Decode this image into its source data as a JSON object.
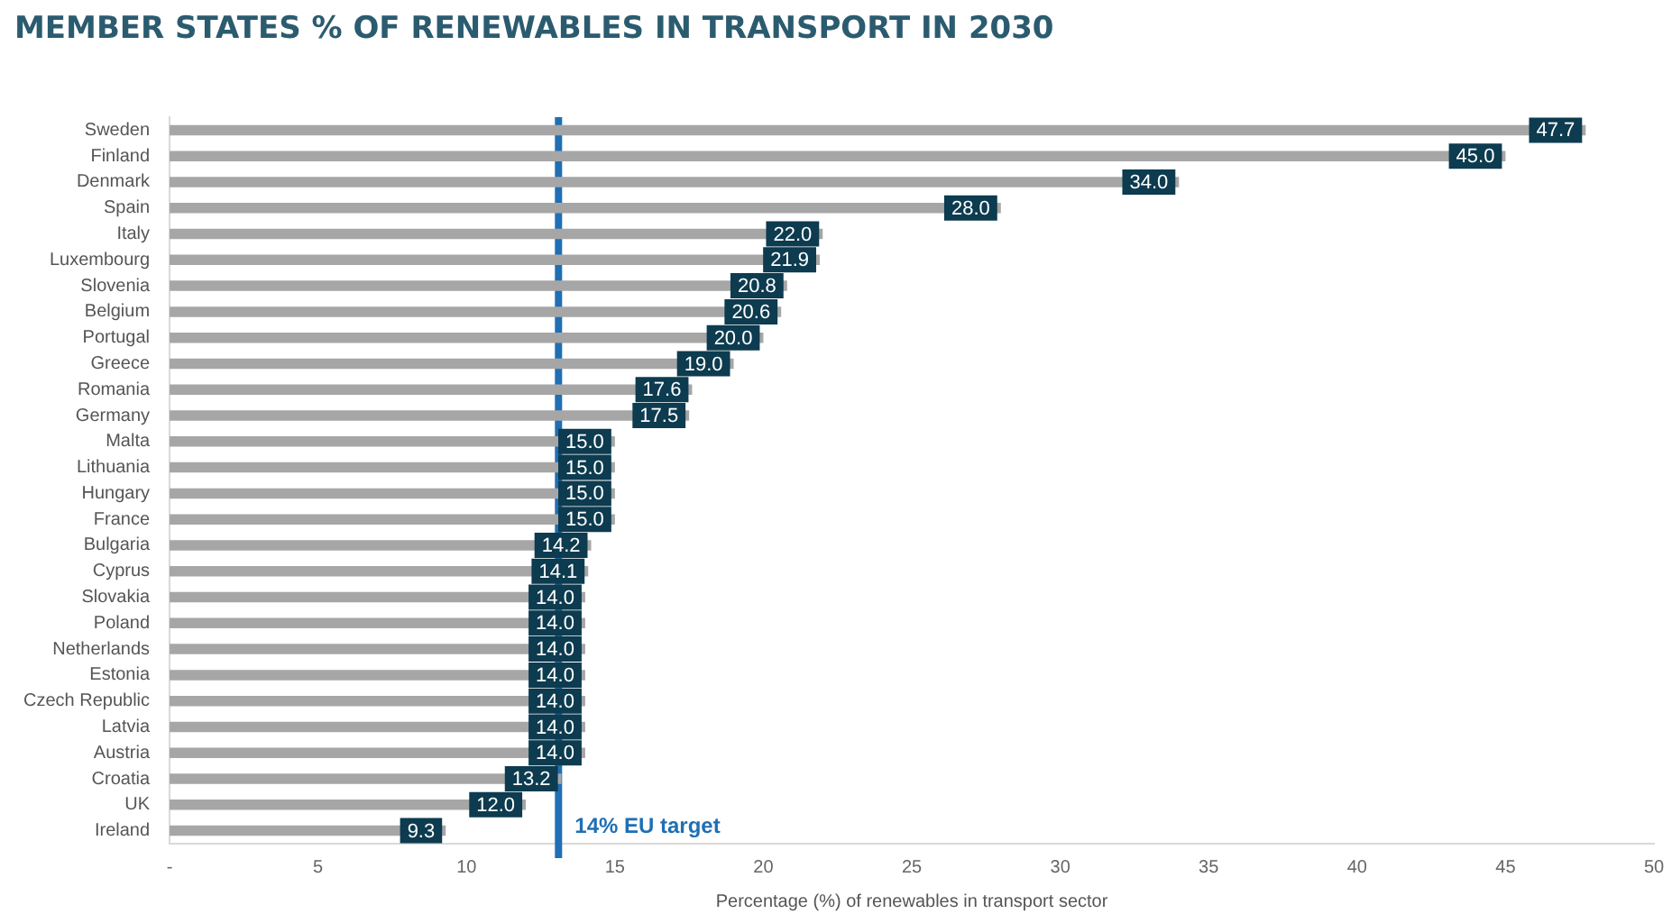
{
  "chart_data": {
    "type": "bar",
    "orientation": "horizontal",
    "title": "MEMBER STATES % OF RENEWABLES IN TRANSPORT IN 2030",
    "xlabel": "Percentage (%) of renewables in transport sector",
    "categories": [
      "Sweden",
      "Finland",
      "Denmark",
      "Spain",
      "Italy",
      "Luxembourg",
      "Slovenia",
      "Belgium",
      "Portugal",
      "Greece",
      "Romania",
      "Germany",
      "Malta",
      "Lithuania",
      "Hungary",
      "France",
      "Bulgaria",
      "Cyprus",
      "Slovakia",
      "Poland",
      "Netherlands",
      "Estonia",
      "Czech Republic",
      "Latvia",
      "Austria",
      "Croatia",
      "UK",
      "Ireland"
    ],
    "values": [
      47.7,
      45.0,
      34.0,
      28.0,
      22.0,
      21.9,
      20.8,
      20.6,
      20.0,
      19.0,
      17.6,
      17.5,
      15.0,
      15.0,
      15.0,
      15.0,
      14.2,
      14.1,
      14.0,
      14.0,
      14.0,
      14.0,
      14.0,
      14.0,
      14.0,
      13.2,
      12.0,
      9.3
    ],
    "value_labels": [
      "47.7",
      "45.0",
      "34.0",
      "28.0",
      "22.0",
      "21.9",
      "20.8",
      "20.6",
      "20.0",
      "19.0",
      "17.6",
      "17.5",
      "15.0",
      "15.0",
      "15.0",
      "15.0",
      "14.2",
      "14.1",
      "14.0",
      "14.0",
      "14.0",
      "14.0",
      "14.0",
      "14.0",
      "14.0",
      "13.2",
      "12.0",
      "9.3"
    ],
    "color": "#a6a6a6",
    "xlim": [
      0,
      50
    ],
    "xticks": [
      {
        "value": 0,
        "label": "-"
      },
      5,
      10,
      15,
      20,
      25,
      30,
      35,
      40,
      45,
      50
    ],
    "ref_lines": [
      {
        "axis": "x",
        "value": 13.1,
        "label": "14% EU target",
        "color": "#1f6fb4"
      }
    ],
    "grid": false,
    "legend": false
  }
}
